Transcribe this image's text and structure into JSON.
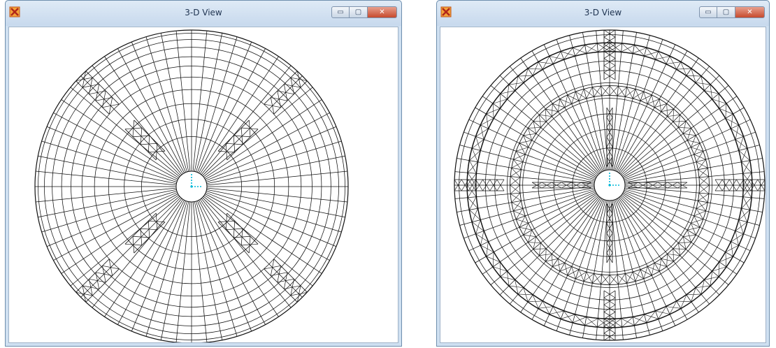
{
  "windows": [
    {
      "title": "3-D View",
      "icon": "app-logo-icon",
      "controls": {
        "minimize_glyph": "▭",
        "maximize_glyph": "▢",
        "close_glyph": "✕"
      },
      "view": {
        "model": "radial slab mesh",
        "bracing": "four diagonal braced bands"
      }
    },
    {
      "title": "3-D View",
      "icon": "app-logo-icon",
      "controls": {
        "minimize_glyph": "▭",
        "maximize_glyph": "▢",
        "close_glyph": "✕"
      },
      "view": {
        "model": "radial slab mesh",
        "bracing": "two circular braced rings and four orthogonal braced bands"
      }
    }
  ],
  "colors": {
    "mesh": "#111111",
    "axis": "#00b8d8",
    "titlebar": "#cfe0f1",
    "close_button": "#c64a2d"
  }
}
